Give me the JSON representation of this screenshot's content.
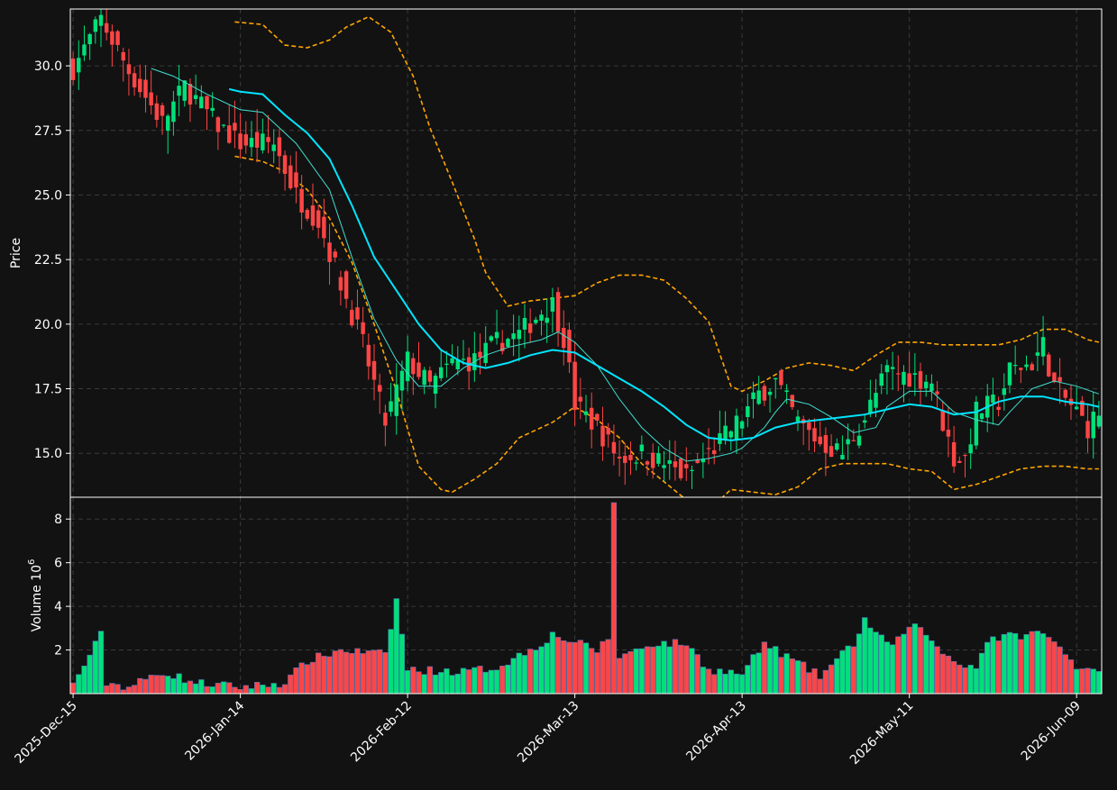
{
  "chart_data": {
    "type": "candlestick",
    "x_ticks": [
      "2025-Dec-15",
      "2026-Jan-14",
      "2026-Feb-12",
      "2026-Mar-13",
      "2026-Apr-13",
      "2026-May-11",
      "2026-Jun-09"
    ],
    "x_tick_index": [
      0,
      30,
      60,
      90,
      120,
      150,
      180
    ],
    "x_range": [
      -0.5,
      184.5
    ],
    "price_axis": {
      "label": "Price",
      "ylim": [
        13.3,
        32.2
      ],
      "ticks": [
        "15.0",
        "17.5",
        "20.0",
        "22.5",
        "25.0",
        "27.5",
        "30.0"
      ]
    },
    "volume_axis": {
      "label": "Volume  10",
      "label_exponent": "6",
      "ylim": [
        0,
        9.0
      ],
      "ticks": [
        "2",
        "4",
        "6",
        "8"
      ]
    },
    "colors": {
      "up": "#00e07a",
      "down": "#ff4545",
      "ma_fast": "#40e0d0",
      "ma_slow": "#00e5ff",
      "bands": "#ffa500",
      "background": "#121212",
      "grid": "#3a3a3a",
      "frame": "#ffffff"
    },
    "grid": true,
    "key_prices": [
      [
        0,
        29.9
      ],
      [
        5,
        31.8
      ],
      [
        10,
        29.8
      ],
      [
        16,
        27.8
      ],
      [
        20,
        29.2
      ],
      [
        26,
        27.7
      ],
      [
        30,
        27.0
      ],
      [
        36,
        27.0
      ],
      [
        40,
        25.0
      ],
      [
        44,
        24.0
      ],
      [
        48,
        21.6
      ],
      [
        52,
        19.2
      ],
      [
        56,
        16.2
      ],
      [
        60,
        18.6
      ],
      [
        64,
        17.6
      ],
      [
        68,
        18.5
      ],
      [
        72,
        18.6
      ],
      [
        76,
        19.3
      ],
      [
        80,
        19.6
      ],
      [
        84,
        20.5
      ],
      [
        86,
        20.8
      ],
      [
        88,
        19.5
      ],
      [
        90,
        16.9
      ],
      [
        94,
        16.0
      ],
      [
        98,
        14.8
      ],
      [
        102,
        15.0
      ],
      [
        106,
        14.6
      ],
      [
        110,
        14.1
      ],
      [
        114,
        15.0
      ],
      [
        118,
        15.9
      ],
      [
        120,
        16.4
      ],
      [
        123,
        17.3
      ],
      [
        126,
        17.8
      ],
      [
        130,
        16.2
      ],
      [
        134,
        15.4
      ],
      [
        138,
        15.0
      ],
      [
        142,
        16.4
      ],
      [
        146,
        18.2
      ],
      [
        150,
        18.0
      ],
      [
        154,
        17.8
      ],
      [
        156,
        16.2
      ],
      [
        158,
        14.8
      ],
      [
        160,
        14.8
      ],
      [
        162,
        16.6
      ],
      [
        166,
        17.0
      ],
      [
        168,
        18.2
      ],
      [
        172,
        18.5
      ],
      [
        174,
        19.2
      ],
      [
        176,
        17.6
      ],
      [
        180,
        16.6
      ],
      [
        182,
        16.0
      ],
      [
        184,
        16.6
      ]
    ],
    "key_volumes": [
      [
        0,
        0.4
      ],
      [
        5,
        2.7
      ],
      [
        6,
        0.5
      ],
      [
        10,
        0.3
      ],
      [
        16,
        1.0
      ],
      [
        22,
        0.5
      ],
      [
        30,
        0.3
      ],
      [
        38,
        0.5
      ],
      [
        42,
        1.5
      ],
      [
        48,
        2.0
      ],
      [
        56,
        1.8
      ],
      [
        58,
        4.3
      ],
      [
        60,
        1.1
      ],
      [
        70,
        1.0
      ],
      [
        76,
        1.2
      ],
      [
        84,
        2.3
      ],
      [
        86,
        2.7
      ],
      [
        94,
        2.0
      ],
      [
        96,
        2.5
      ],
      [
        97,
        8.8
      ],
      [
        98,
        1.7
      ],
      [
        104,
        2.3
      ],
      [
        110,
        2.3
      ],
      [
        114,
        1.1
      ],
      [
        120,
        0.9
      ],
      [
        124,
        2.3
      ],
      [
        134,
        0.8
      ],
      [
        140,
        2.3
      ],
      [
        142,
        3.4
      ],
      [
        146,
        2.2
      ],
      [
        152,
        3.2
      ],
      [
        154,
        2.3
      ],
      [
        158,
        1.5
      ],
      [
        162,
        1.2
      ],
      [
        164,
        2.5
      ],
      [
        174,
        2.8
      ],
      [
        180,
        1.3
      ],
      [
        184,
        1.1
      ]
    ],
    "ma_fast_points": [
      [
        14,
        29.9
      ],
      [
        18,
        29.6
      ],
      [
        24,
        28.9
      ],
      [
        30,
        28.3
      ],
      [
        34,
        28.2
      ],
      [
        40,
        27.0
      ],
      [
        46,
        25.2
      ],
      [
        50,
        22.6
      ],
      [
        54,
        20.2
      ],
      [
        58,
        18.6
      ],
      [
        62,
        17.6
      ],
      [
        66,
        17.6
      ],
      [
        70,
        18.3
      ],
      [
        74,
        18.8
      ],
      [
        78,
        19.1
      ],
      [
        84,
        19.4
      ],
      [
        87,
        19.7
      ],
      [
        90,
        19.3
      ],
      [
        94,
        18.4
      ],
      [
        98,
        17.1
      ],
      [
        102,
        16.0
      ],
      [
        106,
        15.2
      ],
      [
        110,
        14.7
      ],
      [
        114,
        14.8
      ],
      [
        118,
        15.0
      ],
      [
        120,
        15.2
      ],
      [
        124,
        16.0
      ],
      [
        126,
        16.6
      ],
      [
        128,
        17.1
      ],
      [
        132,
        16.9
      ],
      [
        136,
        16.4
      ],
      [
        140,
        15.8
      ],
      [
        144,
        16.0
      ],
      [
        146,
        16.8
      ],
      [
        150,
        17.4
      ],
      [
        154,
        17.4
      ],
      [
        158,
        16.6
      ],
      [
        162,
        16.3
      ],
      [
        166,
        16.1
      ],
      [
        168,
        16.6
      ],
      [
        172,
        17.5
      ],
      [
        176,
        17.8
      ],
      [
        180,
        17.6
      ],
      [
        184,
        17.3
      ]
    ],
    "ma_slow_points": [
      [
        28,
        29.1
      ],
      [
        30,
        29.0
      ],
      [
        34,
        28.9
      ],
      [
        38,
        28.1
      ],
      [
        42,
        27.4
      ],
      [
        46,
        26.4
      ],
      [
        50,
        24.6
      ],
      [
        54,
        22.6
      ],
      [
        58,
        21.3
      ],
      [
        62,
        20.0
      ],
      [
        66,
        19.0
      ],
      [
        70,
        18.5
      ],
      [
        74,
        18.3
      ],
      [
        78,
        18.5
      ],
      [
        82,
        18.8
      ],
      [
        86,
        19.0
      ],
      [
        90,
        18.9
      ],
      [
        94,
        18.4
      ],
      [
        98,
        17.9
      ],
      [
        102,
        17.4
      ],
      [
        106,
        16.8
      ],
      [
        110,
        16.1
      ],
      [
        114,
        15.6
      ],
      [
        118,
        15.5
      ],
      [
        122,
        15.6
      ],
      [
        126,
        16.0
      ],
      [
        130,
        16.2
      ],
      [
        134,
        16.3
      ],
      [
        138,
        16.4
      ],
      [
        142,
        16.5
      ],
      [
        146,
        16.7
      ],
      [
        150,
        16.9
      ],
      [
        154,
        16.8
      ],
      [
        158,
        16.5
      ],
      [
        162,
        16.6
      ],
      [
        166,
        17.0
      ],
      [
        170,
        17.2
      ],
      [
        174,
        17.2
      ],
      [
        178,
        17.0
      ],
      [
        182,
        16.9
      ],
      [
        184,
        16.8
      ]
    ],
    "upper_band_points": [
      [
        29,
        31.7
      ],
      [
        34,
        31.6
      ],
      [
        38,
        30.8
      ],
      [
        42,
        30.7
      ],
      [
        46,
        31.0
      ],
      [
        49,
        31.5
      ],
      [
        53,
        31.9
      ],
      [
        57,
        31.3
      ],
      [
        61,
        29.6
      ],
      [
        64,
        27.6
      ],
      [
        68,
        25.5
      ],
      [
        72,
        23.3
      ],
      [
        74,
        22.0
      ],
      [
        78,
        20.7
      ],
      [
        82,
        20.9
      ],
      [
        86,
        21.0
      ],
      [
        90,
        21.1
      ],
      [
        94,
        21.6
      ],
      [
        98,
        21.9
      ],
      [
        102,
        21.9
      ],
      [
        106,
        21.7
      ],
      [
        110,
        21.0
      ],
      [
        114,
        20.1
      ],
      [
        118,
        17.6
      ],
      [
        120,
        17.4
      ],
      [
        124,
        17.8
      ],
      [
        128,
        18.3
      ],
      [
        132,
        18.5
      ],
      [
        136,
        18.4
      ],
      [
        140,
        18.2
      ],
      [
        144,
        18.8
      ],
      [
        148,
        19.3
      ],
      [
        152,
        19.3
      ],
      [
        156,
        19.2
      ],
      [
        160,
        19.2
      ],
      [
        166,
        19.2
      ],
      [
        170,
        19.4
      ],
      [
        174,
        19.8
      ],
      [
        178,
        19.8
      ],
      [
        182,
        19.4
      ],
      [
        184,
        19.3
      ]
    ],
    "lower_band_points": [
      [
        29,
        26.5
      ],
      [
        34,
        26.3
      ],
      [
        38,
        25.9
      ],
      [
        42,
        25.2
      ],
      [
        46,
        24.1
      ],
      [
        50,
        22.4
      ],
      [
        54,
        20.0
      ],
      [
        58,
        17.4
      ],
      [
        62,
        14.5
      ],
      [
        66,
        13.6
      ],
      [
        68,
        13.5
      ],
      [
        72,
        14.0
      ],
      [
        76,
        14.6
      ],
      [
        80,
        15.6
      ],
      [
        84,
        16.0
      ],
      [
        86,
        16.2
      ],
      [
        90,
        16.8
      ],
      [
        94,
        16.3
      ],
      [
        98,
        15.6
      ],
      [
        102,
        14.6
      ],
      [
        106,
        13.9
      ],
      [
        110,
        13.2
      ],
      [
        114,
        12.8
      ],
      [
        118,
        13.6
      ],
      [
        122,
        13.5
      ],
      [
        126,
        13.4
      ],
      [
        130,
        13.7
      ],
      [
        134,
        14.4
      ],
      [
        138,
        14.6
      ],
      [
        142,
        14.6
      ],
      [
        146,
        14.6
      ],
      [
        150,
        14.4
      ],
      [
        154,
        14.3
      ],
      [
        158,
        13.6
      ],
      [
        162,
        13.8
      ],
      [
        166,
        14.1
      ],
      [
        170,
        14.4
      ],
      [
        174,
        14.5
      ],
      [
        178,
        14.5
      ],
      [
        182,
        14.4
      ],
      [
        184,
        14.4
      ]
    ]
  }
}
